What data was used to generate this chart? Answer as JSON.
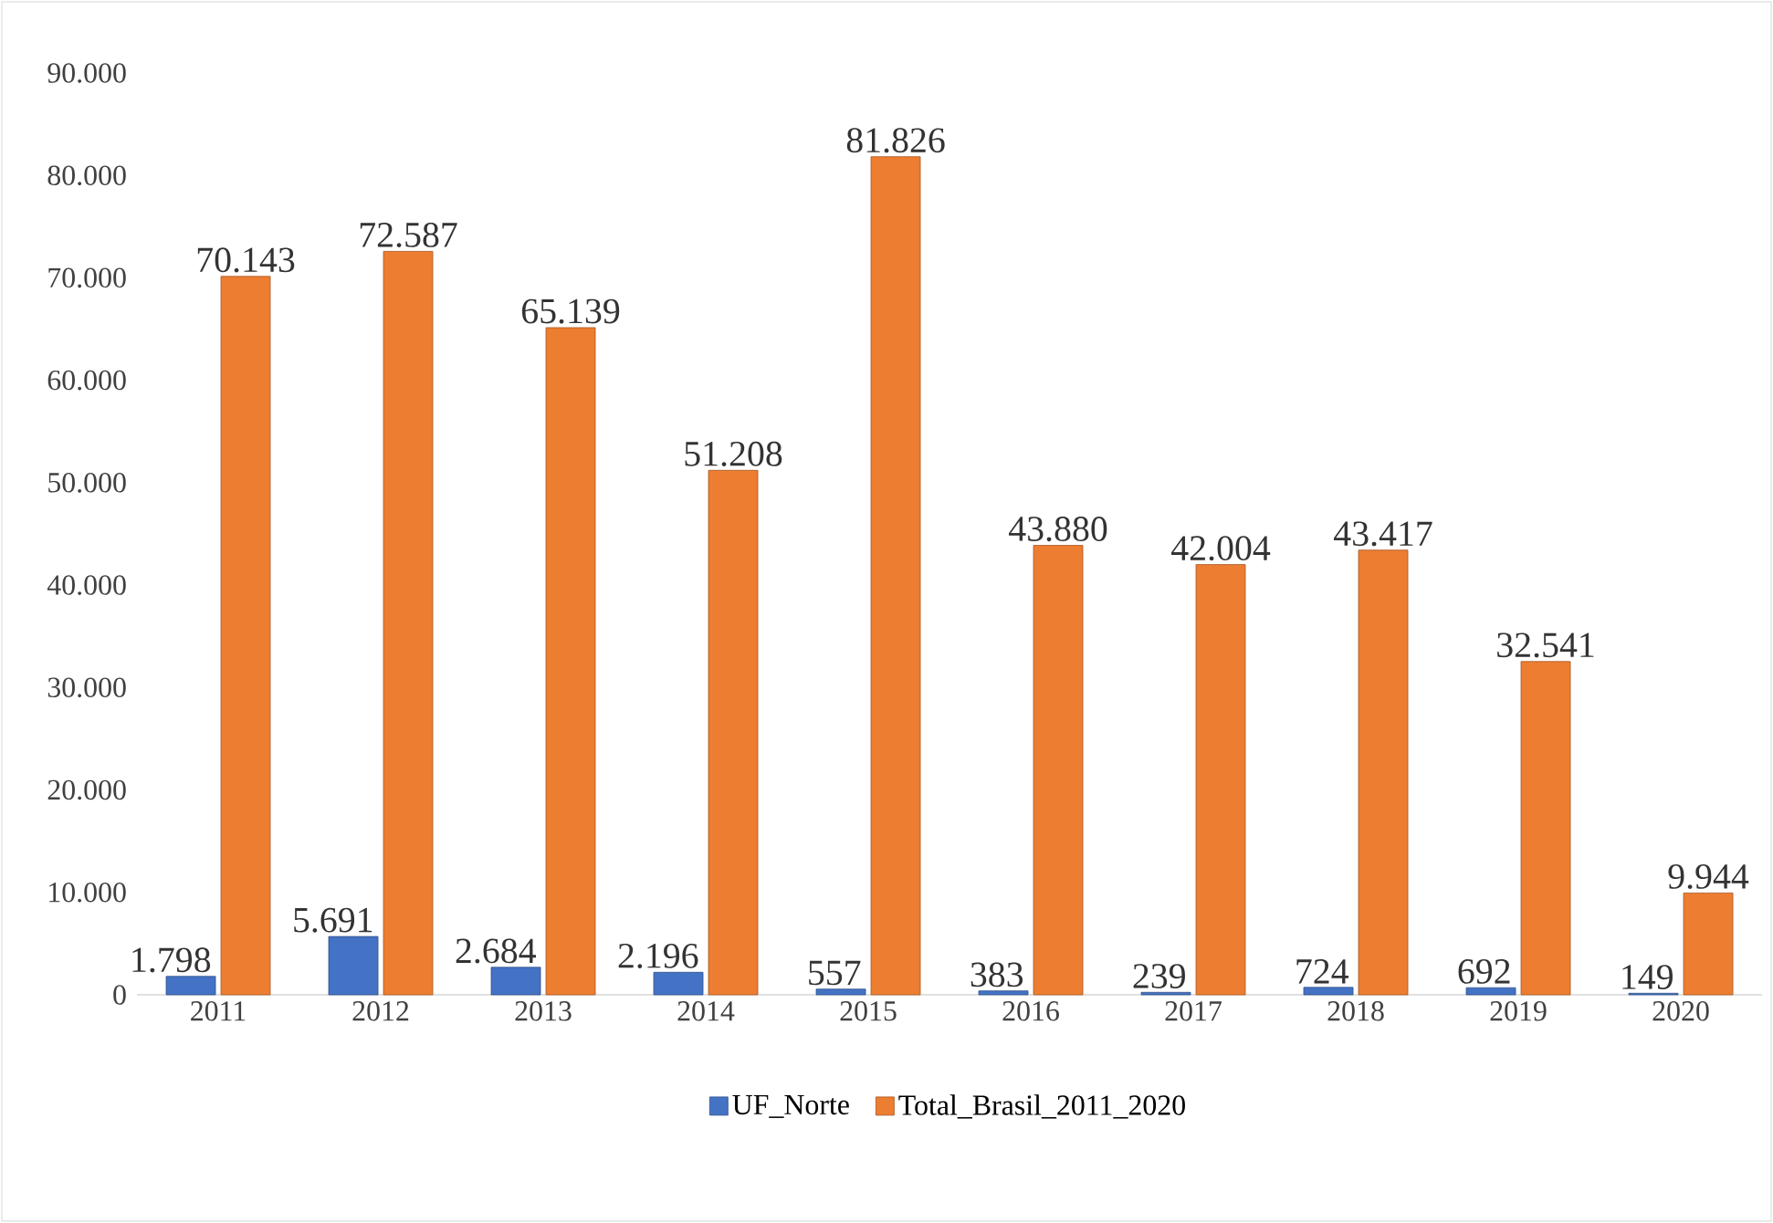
{
  "chart_data": {
    "type": "bar",
    "categories": [
      "2011",
      "2012",
      "2013",
      "2014",
      "2015",
      "2016",
      "2017",
      "2018",
      "2019",
      "2020"
    ],
    "series": [
      {
        "name": "UF_Norte",
        "color": "#4472c4",
        "values": [
          1798,
          5691,
          2684,
          2196,
          557,
          383,
          239,
          724,
          692,
          149
        ],
        "value_labels": [
          "1.798",
          "5.691",
          "2.684",
          "2.196",
          "557",
          "383",
          "239",
          "724",
          "692",
          "149"
        ]
      },
      {
        "name": "Total_Brasil_2011_2020",
        "color": "#ed7d31",
        "values": [
          70143,
          72587,
          65139,
          51208,
          81826,
          43880,
          42004,
          43417,
          32541,
          9944
        ],
        "value_labels": [
          "70.143",
          "72.587",
          "65.139",
          "51.208",
          "81.826",
          "43.880",
          "42.004",
          "43.417",
          "32.541",
          "9.944"
        ]
      }
    ],
    "ylim": [
      0,
      90000
    ],
    "yticks": [
      {
        "value": 0,
        "label": "0"
      },
      {
        "value": 10000,
        "label": "10.000"
      },
      {
        "value": 20000,
        "label": "20.000"
      },
      {
        "value": 30000,
        "label": "30.000"
      },
      {
        "value": 40000,
        "label": "40.000"
      },
      {
        "value": 50000,
        "label": "50.000"
      },
      {
        "value": 60000,
        "label": "60.000"
      },
      {
        "value": 70000,
        "label": "70.000"
      },
      {
        "value": 80000,
        "label": "80.000"
      },
      {
        "value": 90000,
        "label": "90.000"
      }
    ],
    "legend": "bottom"
  }
}
